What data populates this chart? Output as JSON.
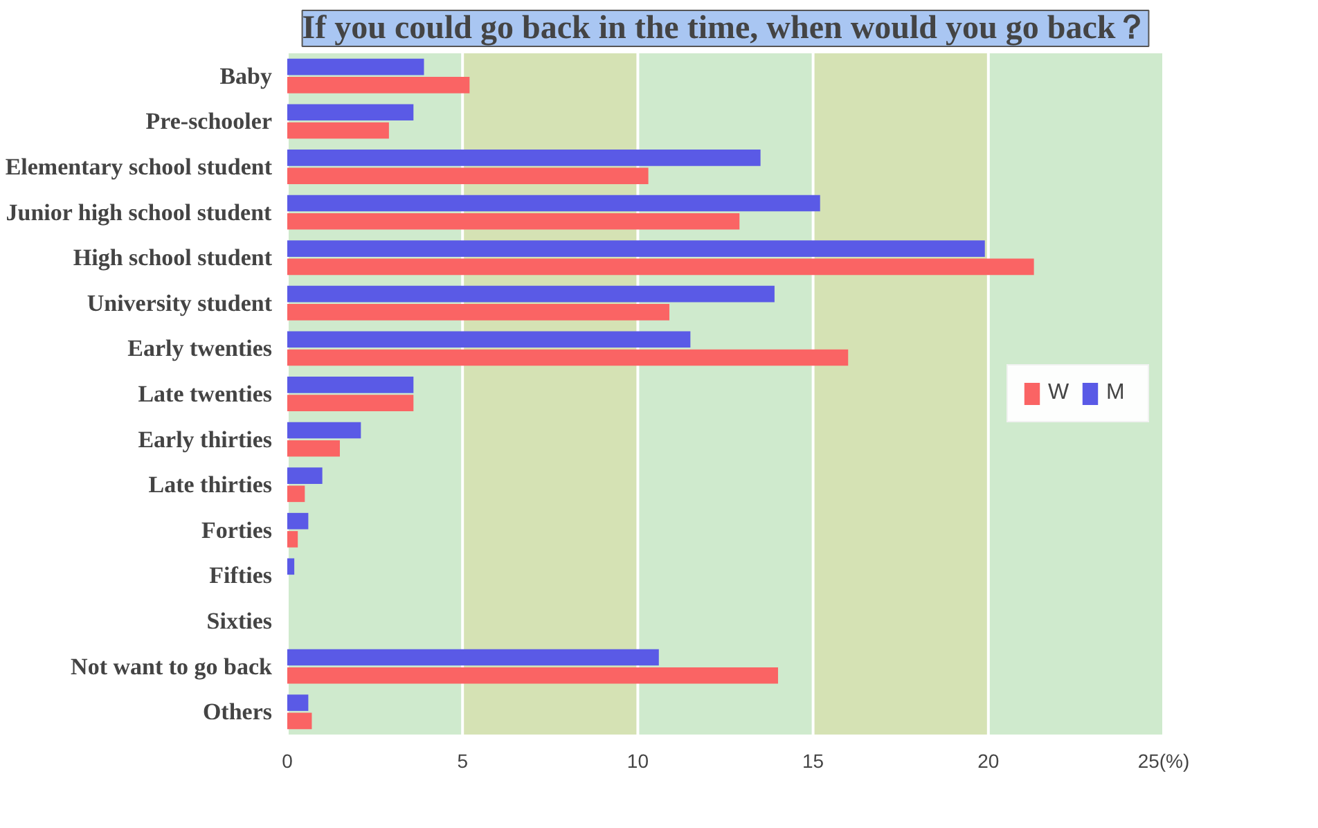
{
  "chart_data": {
    "type": "bar",
    "orientation": "horizontal",
    "title": "If you could go back in the time, when would you go back？",
    "categories": [
      "Baby",
      "Pre-schooler",
      "Elementary school student",
      "Junior high school student",
      "High school student",
      "University student",
      "Early twenties",
      "Late twenties",
      "Early thirties",
      "Late thirties",
      "Forties",
      "Fifties",
      "Sixties",
      "Not want to go back",
      "Others"
    ],
    "series": [
      {
        "name": "M",
        "color": "#5a5ae6",
        "values": [
          3.9,
          3.6,
          13.5,
          15.2,
          19.9,
          13.9,
          11.5,
          3.6,
          2.1,
          1.0,
          0.6,
          0.2,
          0,
          10.6,
          0.6
        ]
      },
      {
        "name": "W",
        "color": "#fa6464",
        "values": [
          5.2,
          2.9,
          10.3,
          12.9,
          21.3,
          10.9,
          16.0,
          3.6,
          1.5,
          0.5,
          0.3,
          0,
          0,
          14.0,
          0.7
        ]
      }
    ],
    "xlim": [
      0,
      25
    ],
    "xticks": [
      0,
      5,
      10,
      15,
      20,
      {
        "value": 25,
        "label": "25(%)"
      }
    ],
    "bands": [
      {
        "axis": "x",
        "from": 0,
        "to": 5,
        "color": "#cfeacd"
      },
      {
        "axis": "x",
        "from": 5,
        "to": 10,
        "color": "#d5e2b4"
      },
      {
        "axis": "x",
        "from": 10,
        "to": 15,
        "color": "#cfeacd"
      },
      {
        "axis": "x",
        "from": 15,
        "to": 20,
        "color": "#d5e2b4"
      },
      {
        "axis": "x",
        "from": 20,
        "to": 25,
        "color": "#cfeacd"
      }
    ],
    "grid": "x",
    "legend": "right"
  }
}
